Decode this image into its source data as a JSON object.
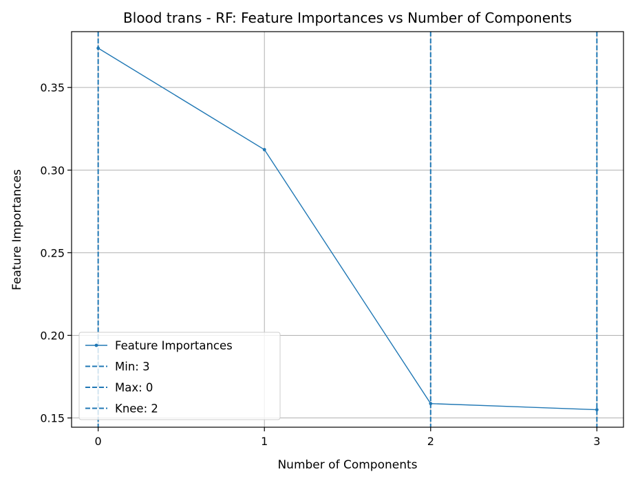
{
  "chart_data": {
    "type": "line",
    "title": "Blood trans - RF: Feature Importances vs Number of Components",
    "xlabel": "Number of Components",
    "ylabel": "Feature Importances",
    "xlim": [
      -0.16,
      3.16
    ],
    "ylim": [
      0.1444,
      0.3838
    ],
    "x_ticks": [
      {
        "value": 0,
        "label": "0"
      },
      {
        "value": 1,
        "label": "1"
      },
      {
        "value": 2,
        "label": "2"
      },
      {
        "value": 3,
        "label": "3"
      }
    ],
    "y_ticks": [
      {
        "value": 0.15,
        "label": "0.15"
      },
      {
        "value": 0.2,
        "label": "0.20"
      },
      {
        "value": 0.25,
        "label": "0.25"
      },
      {
        "value": 0.3,
        "label": "0.30"
      },
      {
        "value": 0.35,
        "label": "0.35"
      }
    ],
    "grid": true,
    "legend_position": "lower-left",
    "series": [
      {
        "name": "Feature Importances",
        "color": "#1f77b4",
        "x": [
          0,
          1,
          2,
          3
        ],
        "values": [
          0.3738,
          0.3124,
          0.1587,
          0.155
        ]
      }
    ],
    "vlines": [
      {
        "name": "Min: 3",
        "x": 3,
        "color": "#1f77b4",
        "style": "dashed"
      },
      {
        "name": "Max: 0",
        "x": 0,
        "color": "#1f77b4",
        "style": "dashed"
      },
      {
        "name": "Knee: 2",
        "x": 2,
        "color": "#1f77b4",
        "style": "dashed"
      }
    ]
  }
}
